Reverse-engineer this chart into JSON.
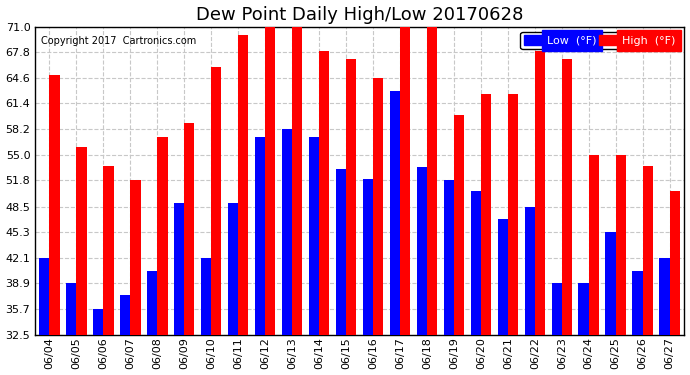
{
  "title": "Dew Point Daily High/Low 20170628",
  "copyright": "Copyright 2017  Cartronics.com",
  "dates": [
    "06/04",
    "06/05",
    "06/06",
    "06/07",
    "06/08",
    "06/09",
    "06/10",
    "06/11",
    "06/12",
    "06/13",
    "06/14",
    "06/15",
    "06/16",
    "06/17",
    "06/18",
    "06/19",
    "06/20",
    "06/21",
    "06/22",
    "06/23",
    "06/24",
    "06/25",
    "06/26",
    "06/27"
  ],
  "low_values": [
    42.1,
    38.9,
    35.7,
    37.5,
    40.5,
    49.0,
    42.1,
    49.0,
    57.2,
    58.2,
    57.2,
    53.2,
    52.0,
    63.0,
    53.4,
    51.8,
    50.5,
    47.0,
    48.5,
    38.9,
    38.9,
    45.3,
    40.5,
    42.1
  ],
  "high_values": [
    65.0,
    56.0,
    53.6,
    51.8,
    57.2,
    59.0,
    66.0,
    70.0,
    71.0,
    71.0,
    68.0,
    67.0,
    64.6,
    71.0,
    71.0,
    60.0,
    62.6,
    62.6,
    68.0,
    67.0,
    55.0,
    55.0,
    53.6,
    50.5
  ],
  "low_color": "#0000ff",
  "high_color": "#ff0000",
  "bg_color": "#ffffff",
  "grid_color": "#c8c8c8",
  "ymin": 32.5,
  "ymax": 71.0,
  "yticks": [
    32.5,
    35.7,
    38.9,
    42.1,
    45.3,
    48.5,
    51.8,
    55.0,
    58.2,
    61.4,
    64.6,
    67.8,
    71.0
  ],
  "title_fontsize": 13,
  "tick_fontsize": 8,
  "legend_fontsize": 8
}
